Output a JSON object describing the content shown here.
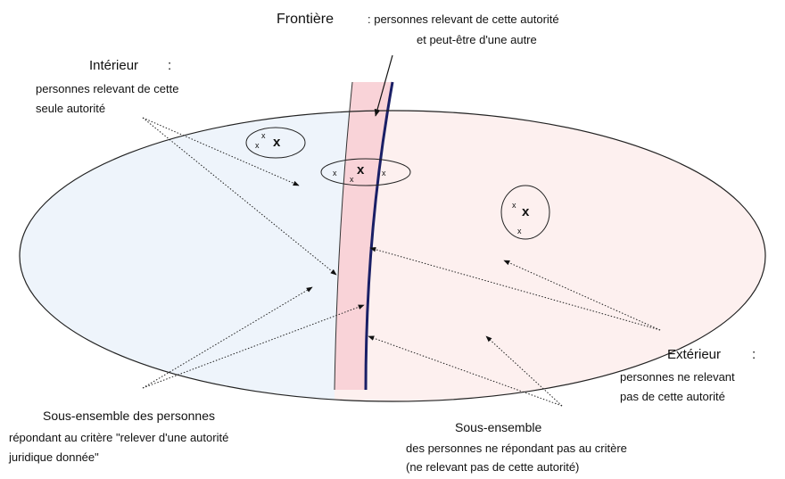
{
  "frontier": {
    "title": "Frontière",
    "line1": ": personnes relevant de cette autorité",
    "line2": "et peut-être d'une autre"
  },
  "interior": {
    "title": "Intérieur",
    "colon": ":",
    "line1": "personnes relevant de cette",
    "line2": "seule autorité"
  },
  "exterior": {
    "title": "Extérieur",
    "colon": ":",
    "line1": "personnes ne relevant",
    "line2": "pas de cette autorité"
  },
  "subset_in": {
    "line1": "Sous-ensemble des personnes",
    "line2": "répondant au critère \"relever d'une autorité",
    "line3": "juridique donnée\""
  },
  "subset_out": {
    "line1": "Sous-ensemble",
    "line2": "des personnes ne répondant pas au critère",
    "line3": "(ne relevant pas de cette autorité)"
  },
  "marks": {
    "small": "x",
    "big": "x"
  }
}
